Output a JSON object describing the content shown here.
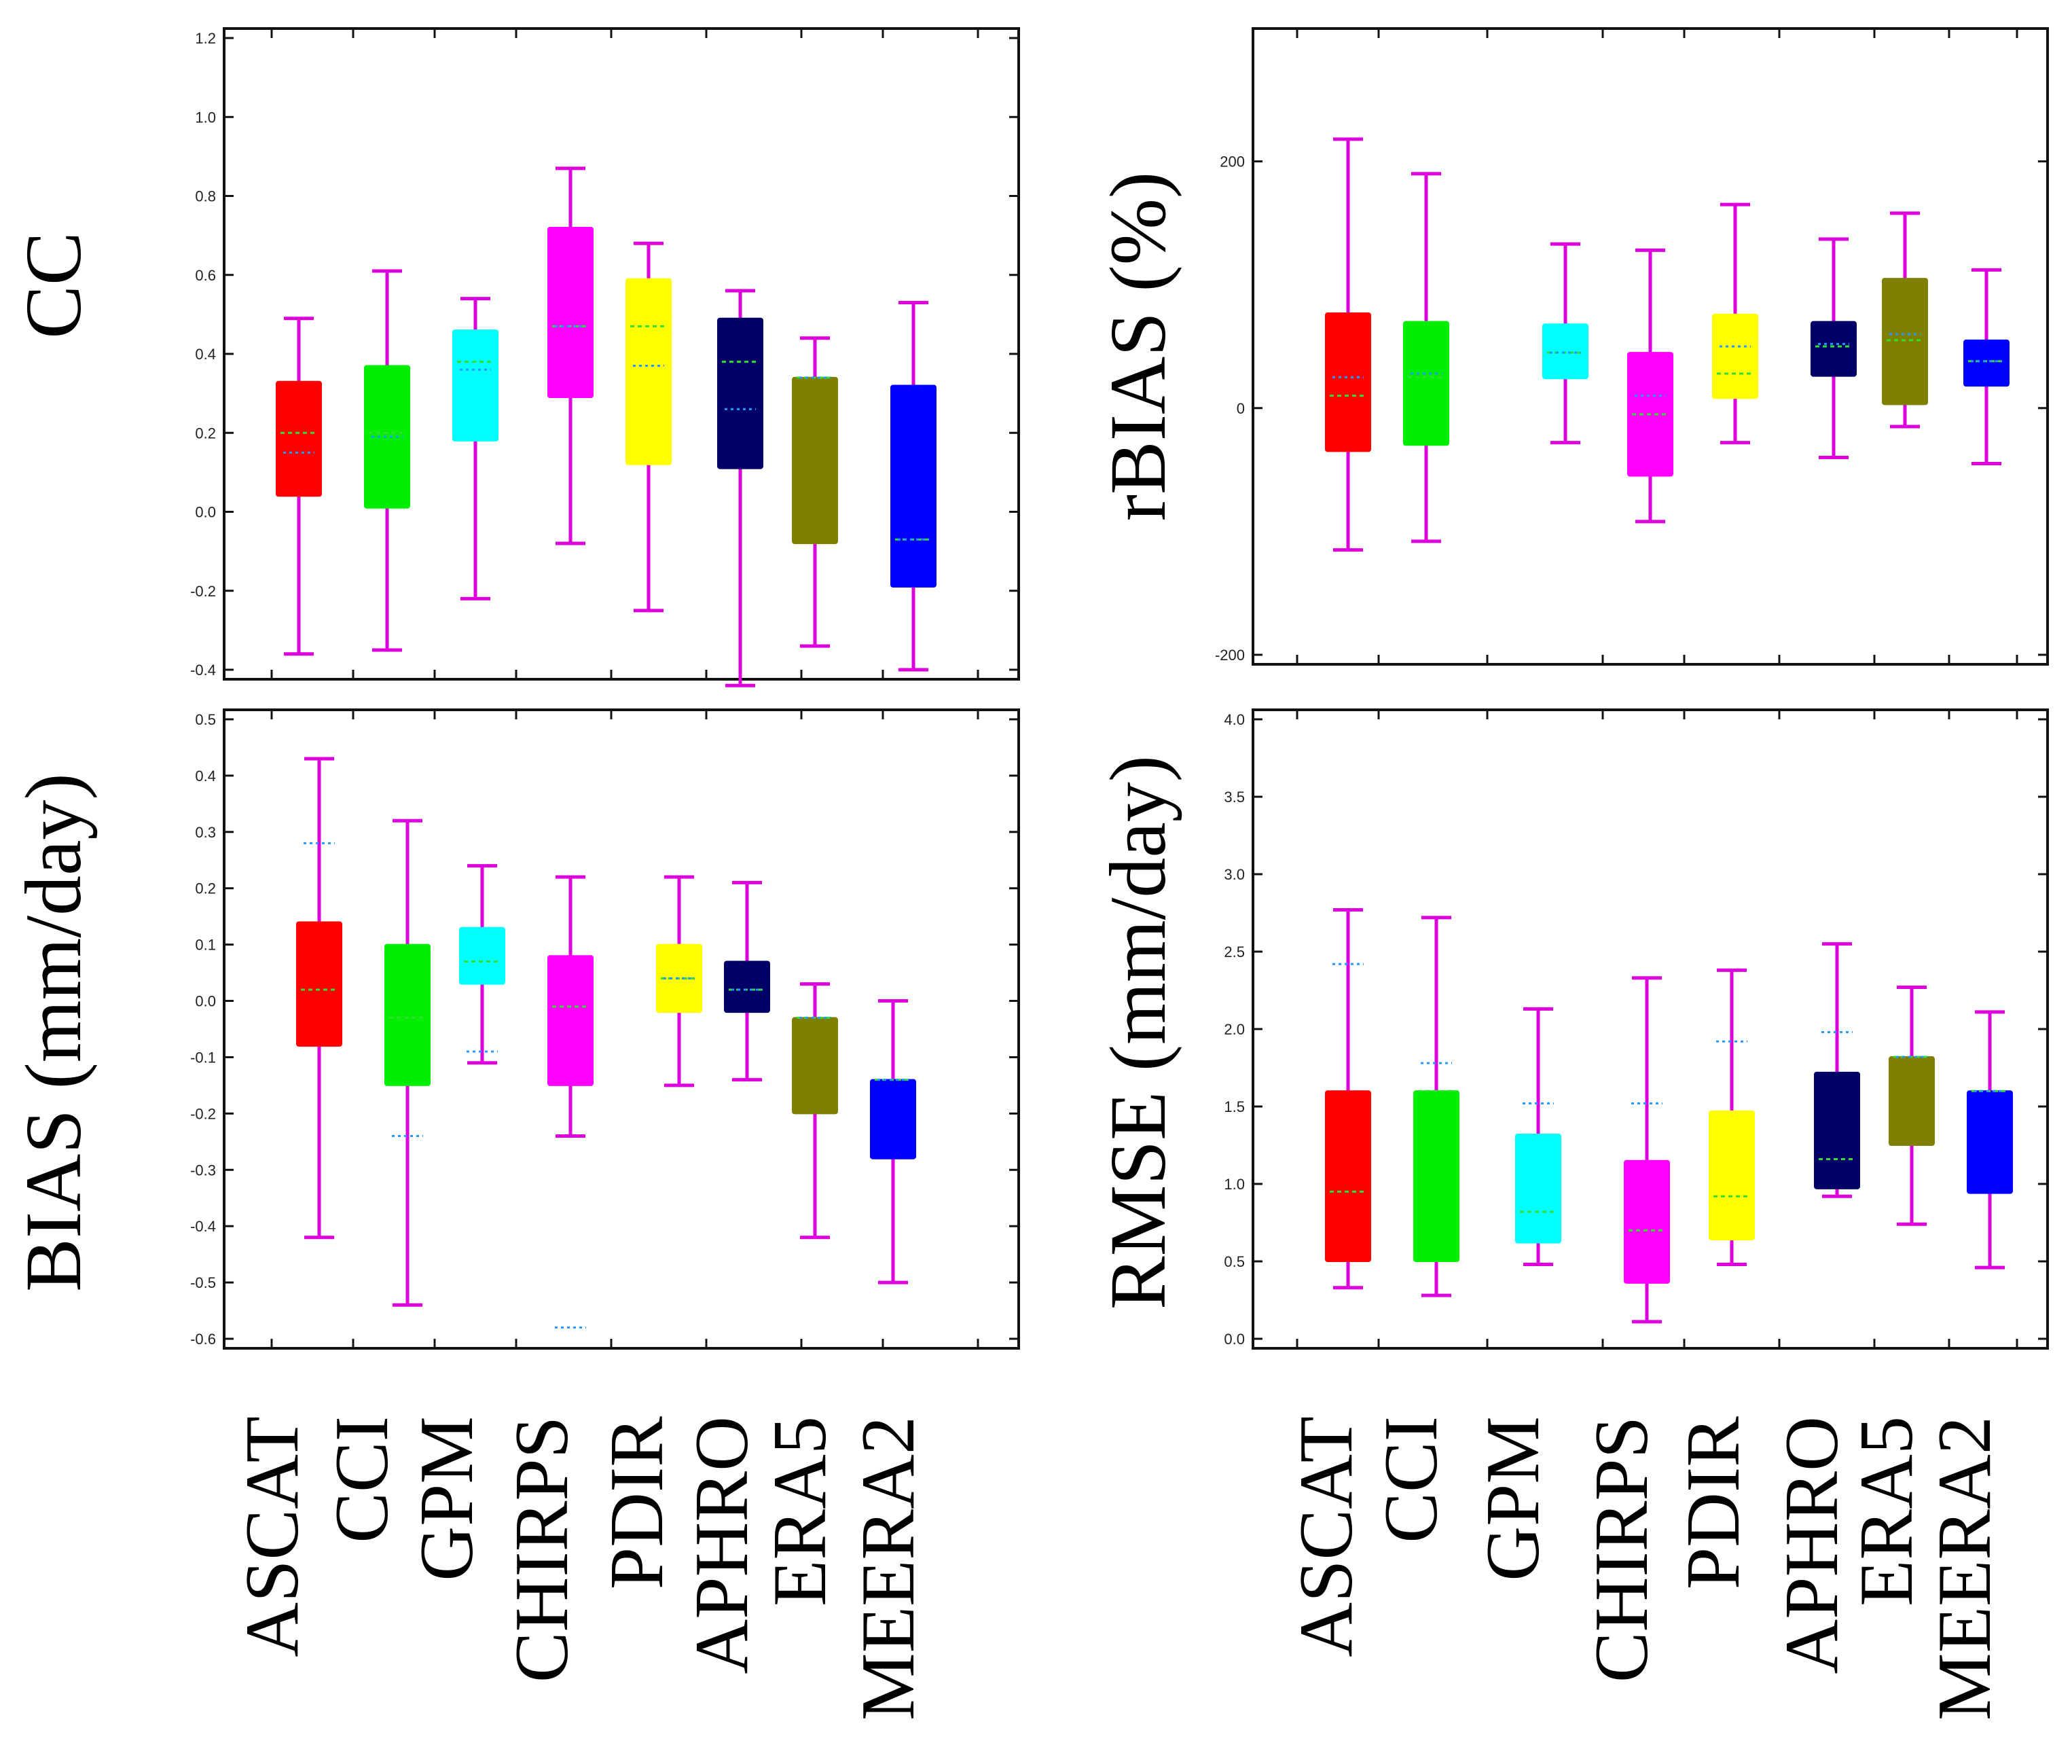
{
  "chart_data": [
    {
      "type": "box",
      "ylabel": "CC",
      "ylim": [
        -0.4,
        1.2
      ],
      "yticks": [
        "-0.4",
        "-0.2",
        "0.0",
        "0.2",
        "0.4",
        "0.6",
        "0.8",
        "1.0",
        "1.2"
      ],
      "categories": [
        "ASCAT",
        "CCI",
        "GPM",
        "CHIRPS",
        "PDIR",
        "APHRO",
        "ERA5",
        "MEERA2"
      ],
      "boxes": [
        {
          "name": "ASCAT",
          "color": "#ff0000",
          "whisker_low": -0.36,
          "q1": 0.04,
          "median": 0.2,
          "mean": 0.15,
          "q3": 0.33,
          "whisker_high": 0.49
        },
        {
          "name": "CCI",
          "color": "#00ee00",
          "whisker_low": -0.35,
          "q1": 0.01,
          "median": 0.2,
          "mean": 0.19,
          "q3": 0.37,
          "whisker_high": 0.61
        },
        {
          "name": "GPM",
          "color": "#00ffff",
          "whisker_low": -0.22,
          "q1": 0.18,
          "median": 0.38,
          "mean": 0.36,
          "q3": 0.46,
          "whisker_high": 0.54
        },
        {
          "name": "CHIRPS",
          "color": "#ff00ff",
          "whisker_low": -0.08,
          "q1": 0.29,
          "median": 0.47,
          "mean": 0.47,
          "q3": 0.72,
          "whisker_high": 0.87
        },
        {
          "name": "PDIR",
          "color": "#ffff00",
          "whisker_low": -0.25,
          "q1": 0.12,
          "median": 0.47,
          "mean": 0.37,
          "q3": 0.59,
          "whisker_high": 0.68
        },
        {
          "name": "APHRO",
          "color": "#000066",
          "whisker_low": -0.44,
          "q1": 0.11,
          "median": 0.38,
          "mean": 0.26,
          "q3": 0.49,
          "whisker_high": 0.56
        },
        {
          "name": "ERA5",
          "color": "#808000",
          "whisker_low": -0.34,
          "q1": -0.08,
          "median": 0.34,
          "mean": 0.34,
          "q3": 0.34,
          "whisker_high": 0.44
        },
        {
          "name": "MEERA2",
          "color": "#0000ff",
          "whisker_low": -0.4,
          "q1": -0.19,
          "median": -0.07,
          "mean": -0.07,
          "q3": 0.32,
          "whisker_high": 0.53
        }
      ]
    },
    {
      "type": "box",
      "ylabel": "rBIAS (%)",
      "ylim": [
        -200,
        300
      ],
      "yticks": [
        "-200",
        "0",
        "200"
      ],
      "categories": [
        "ASCAT",
        "CCI",
        "GPM",
        "CHIRPS",
        "PDIR",
        "APHRO",
        "ERA5",
        "MEERA2"
      ],
      "boxes": [
        {
          "name": "ASCAT",
          "color": "#ff0000",
          "whisker_low": -115,
          "q1": -35,
          "median": 10,
          "mean": 25,
          "q3": 77,
          "whisker_high": 218
        },
        {
          "name": "CCI",
          "color": "#00ee00",
          "whisker_low": -108,
          "q1": -30,
          "median": 25,
          "mean": 28,
          "q3": 70,
          "whisker_high": 190
        },
        {
          "name": "GPM",
          "color": "#00ffff",
          "whisker_low": -28,
          "q1": 24,
          "median": 45,
          "mean": 45,
          "q3": 68,
          "whisker_high": 133
        },
        {
          "name": "CHIRPS",
          "color": "#ff00ff",
          "whisker_low": -92,
          "q1": -55,
          "median": -5,
          "mean": 10,
          "q3": 45,
          "whisker_high": 128
        },
        {
          "name": "PDIR",
          "color": "#ffff00",
          "whisker_low": -28,
          "q1": 8,
          "median": 28,
          "mean": 50,
          "q3": 76,
          "whisker_high": 165
        },
        {
          "name": "APHRO",
          "color": "#000066",
          "whisker_low": -40,
          "q1": 26,
          "median": 50,
          "mean": 52,
          "q3": 70,
          "whisker_high": 137
        },
        {
          "name": "ERA5",
          "color": "#808000",
          "whisker_low": -15,
          "q1": 3,
          "median": 55,
          "mean": 60,
          "q3": 105,
          "whisker_high": 158
        },
        {
          "name": "MEERA2",
          "color": "#0000ff",
          "whisker_low": -45,
          "q1": 18,
          "median": 38,
          "mean": 38,
          "q3": 55,
          "whisker_high": 112
        }
      ]
    },
    {
      "type": "box",
      "ylabel": "BIAS (mm/day)",
      "ylim": [
        -0.6,
        0.5
      ],
      "yticks": [
        "-0.6",
        "-0.5",
        "-0.4",
        "-0.3",
        "-0.2",
        "-0.1",
        "0.0",
        "0.1",
        "0.2",
        "0.3",
        "0.4",
        "0.5"
      ],
      "categories": [
        "ASCAT",
        "CCI",
        "GPM",
        "CHIRPS",
        "PDIR",
        "APHRO",
        "ERA5",
        "MEERA2"
      ],
      "boxes": [
        {
          "name": "ASCAT",
          "color": "#ff0000",
          "whisker_low": -0.42,
          "q1": -0.08,
          "median": 0.02,
          "mean": 0.28,
          "q3": 0.14,
          "whisker_high": 0.43
        },
        {
          "name": "CCI",
          "color": "#00ee00",
          "whisker_low": -0.54,
          "q1": -0.15,
          "median": -0.03,
          "mean": -0.24,
          "q3": 0.1,
          "whisker_high": 0.32
        },
        {
          "name": "GPM",
          "color": "#00ffff",
          "whisker_low": -0.11,
          "q1": 0.03,
          "median": 0.07,
          "mean": -0.09,
          "q3": 0.13,
          "whisker_high": 0.24
        },
        {
          "name": "CHIRPS",
          "color": "#ff00ff",
          "whisker_low": -0.24,
          "q1": -0.15,
          "median": -0.01,
          "mean": -0.58,
          "q3": 0.08,
          "whisker_high": 0.22
        },
        {
          "name": "PDIR",
          "color": "#ffff00",
          "whisker_low": -0.15,
          "q1": -0.02,
          "median": 0.04,
          "mean": 0.04,
          "q3": 0.1,
          "whisker_high": 0.22
        },
        {
          "name": "APHRO",
          "color": "#000066",
          "whisker_low": -0.14,
          "q1": -0.02,
          "median": 0.02,
          "mean": 0.02,
          "q3": 0.07,
          "whisker_high": 0.21
        },
        {
          "name": "ERA5",
          "color": "#808000",
          "whisker_low": -0.42,
          "q1": -0.2,
          "median": -0.03,
          "mean": -0.03,
          "q3": -0.03,
          "whisker_high": 0.03
        },
        {
          "name": "MEERA2",
          "color": "#0000ff",
          "whisker_low": -0.5,
          "q1": -0.28,
          "median": -0.14,
          "mean": -0.14,
          "q3": -0.14,
          "whisker_high": 0.0
        }
      ]
    },
    {
      "type": "box",
      "ylabel": "RMSE (mm/day)",
      "ylim": [
        0.0,
        4.0
      ],
      "yticks": [
        "0.0",
        "0.5",
        "1.0",
        "1.5",
        "2.0",
        "2.5",
        "3.0",
        "3.5",
        "4.0"
      ],
      "categories": [
        "ASCAT",
        "CCI",
        "GPM",
        "CHIRPS",
        "PDIR",
        "APHRO",
        "ERA5",
        "MEERA2"
      ],
      "boxes": [
        {
          "name": "ASCAT",
          "color": "#ff0000",
          "whisker_low": 0.33,
          "q1": 0.5,
          "median": 0.95,
          "mean": 2.42,
          "q3": 1.6,
          "whisker_high": 2.77
        },
        {
          "name": "CCI",
          "color": "#00ee00",
          "whisker_low": 0.28,
          "q1": 0.5,
          "median": 1.6,
          "mean": 1.78,
          "q3": 1.6,
          "whisker_high": 2.72
        },
        {
          "name": "GPM",
          "color": "#00ffff",
          "whisker_low": 0.48,
          "q1": 0.62,
          "median": 0.82,
          "mean": 1.52,
          "q3": 1.32,
          "whisker_high": 2.13
        },
        {
          "name": "CHIRPS",
          "color": "#ff00ff",
          "whisker_low": 0.11,
          "q1": 0.36,
          "median": 0.7,
          "mean": 1.52,
          "q3": 1.15,
          "whisker_high": 2.33
        },
        {
          "name": "PDIR",
          "color": "#ffff00",
          "whisker_low": 0.48,
          "q1": 0.64,
          "median": 0.92,
          "mean": 1.92,
          "q3": 1.47,
          "whisker_high": 2.38
        },
        {
          "name": "APHRO",
          "color": "#000066",
          "whisker_low": 0.92,
          "q1": 0.97,
          "median": 1.16,
          "mean": 1.98,
          "q3": 1.72,
          "whisker_high": 2.55
        },
        {
          "name": "ERA5",
          "color": "#808000",
          "whisker_low": 0.74,
          "q1": 1.25,
          "median": 1.82,
          "mean": 1.82,
          "q3": 1.82,
          "whisker_high": 2.27
        },
        {
          "name": "MEERA2",
          "color": "#0000ff",
          "whisker_low": 0.46,
          "q1": 0.94,
          "median": 1.6,
          "mean": 1.6,
          "q3": 1.6,
          "whisker_high": 2.11
        }
      ]
    }
  ],
  "styles": {
    "whisker_color": "#dd00dd",
    "median_color": "#33dd33",
    "mean_color": "#2299ff",
    "axis_color": "#111111"
  }
}
